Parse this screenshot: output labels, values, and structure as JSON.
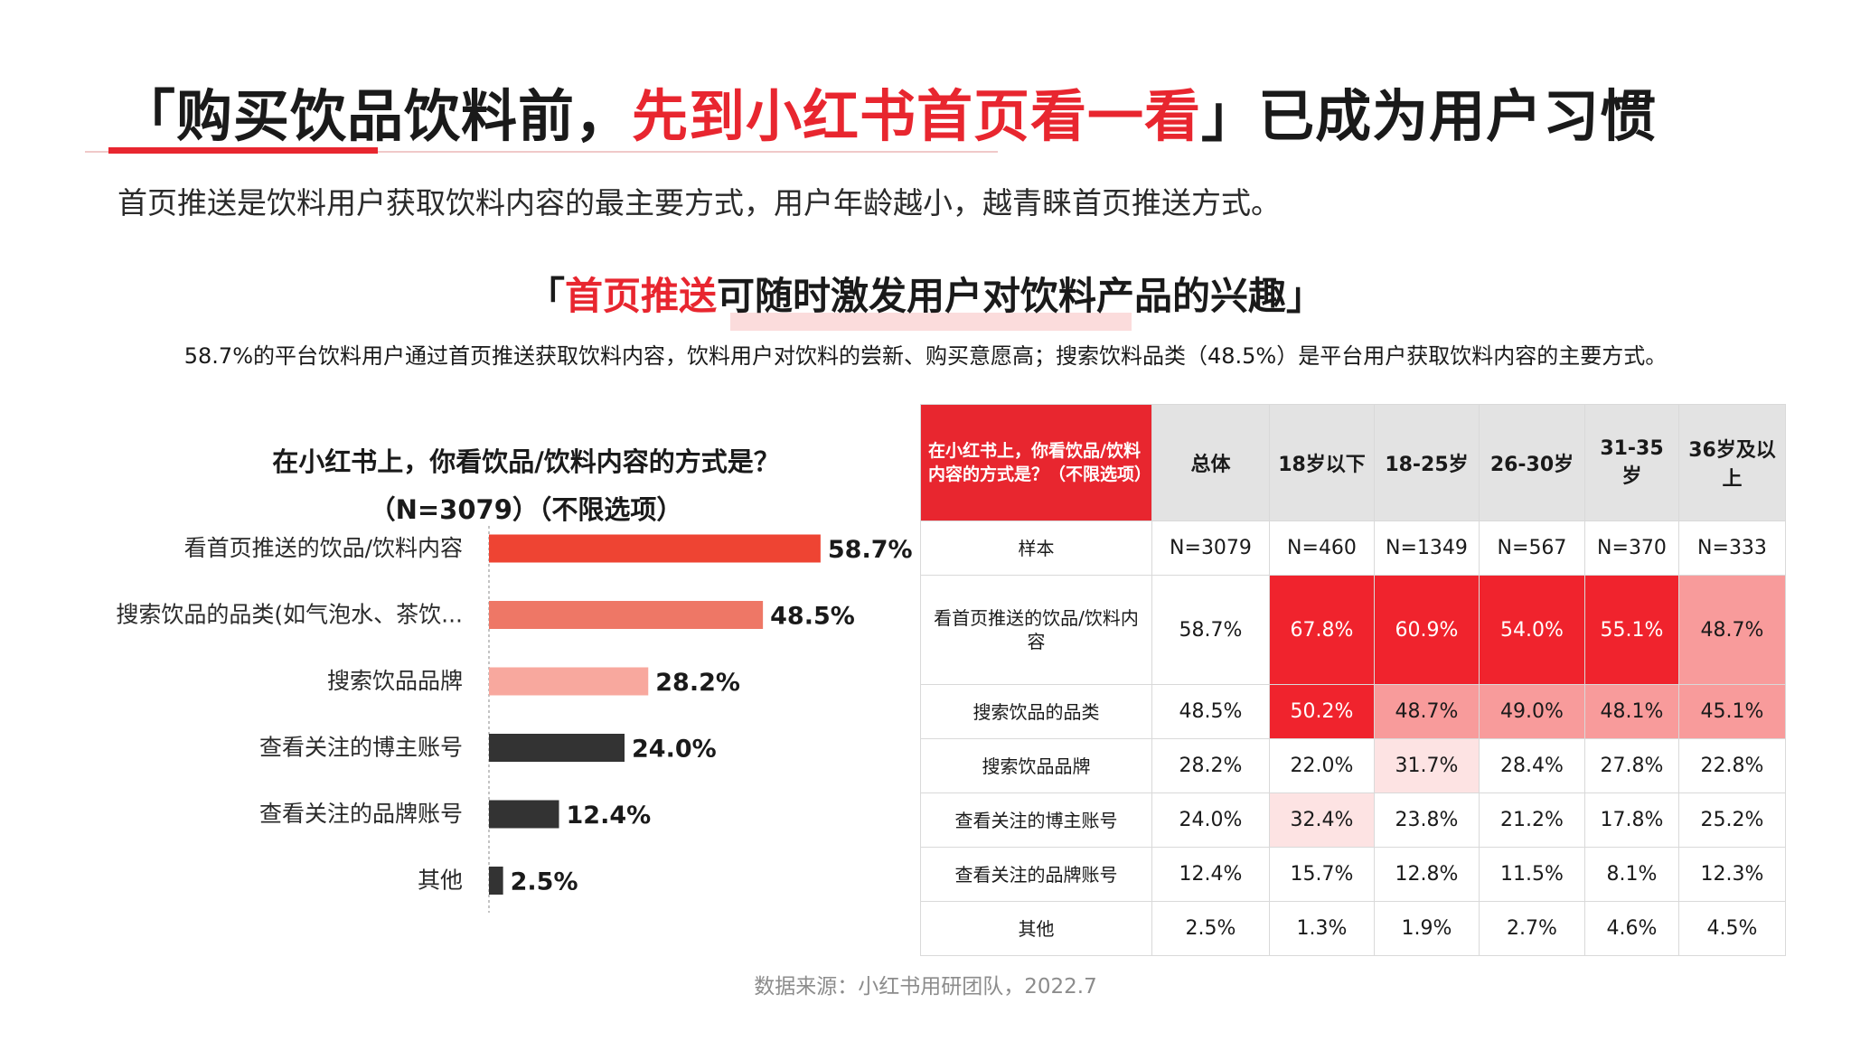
{
  "header": {
    "title_open": "「",
    "title_part1": "购买饮品饮料前，",
    "title_highlight": "先到小红书首页看一看",
    "title_close": "」",
    "title_part2": "已成为用户习惯",
    "subtitle": "首页推送是饮料用户获取饮料内容的最主要方式，用户年龄越小，越青睐首页推送方式。"
  },
  "section": {
    "heading_open": "「",
    "heading_highlight": "首页推送",
    "heading_rest": "可随时激发用户对饮料产品的兴趣",
    "heading_close": "」",
    "description": "58.7%的平台饮料用户通过首页推送获取饮料内容，饮料用户对饮料的尝新、购买意愿高；搜索饮料品类（48.5%）是平台用户获取饮料内容的主要方式。"
  },
  "chart_data": {
    "type": "bar",
    "orientation": "horizontal",
    "title_line1": "在小红书上，你看饮品/饮料内容的方式是？",
    "title_line2": "（N=3079）（不限选项）",
    "categories": [
      "看首页推送的饮品/饮料内容",
      "搜索饮品的品类(如气泡水、茶饮...",
      "搜索饮品品牌",
      "查看关注的博主账号",
      "查看关注的品牌账号",
      "其他"
    ],
    "values": [
      58.7,
      48.5,
      28.2,
      24.0,
      12.4,
      2.5
    ],
    "value_labels": [
      "58.7%",
      "48.5%",
      "28.2%",
      "24.0%",
      "12.4%",
      "2.5%"
    ],
    "bar_colors": [
      "#ee4433",
      "#ee7766",
      "#f8a89e",
      "#333333",
      "#333333",
      "#333333"
    ],
    "xlim": [
      0,
      60
    ],
    "grid": false
  },
  "table": {
    "header_question": "在小红书上，你看饮品/饮料内容的方式是？（不限选项）",
    "columns": [
      "总体",
      "18岁以下",
      "18-25岁",
      "26-30岁",
      "31-35岁",
      "36岁及以上"
    ],
    "rows": [
      {
        "label": "样本",
        "values": [
          "N=3079",
          "N=460",
          "N=1349",
          "N=567",
          "N=370",
          "N=333"
        ],
        "levels": [
          0,
          0,
          0,
          0,
          0,
          0
        ]
      },
      {
        "label": "看首页推送的饮品/饮料内容",
        "values": [
          "58.7%",
          "67.8%",
          "60.9%",
          "54.0%",
          "55.1%",
          "48.7%"
        ],
        "levels": [
          0,
          1,
          1,
          1,
          1,
          2
        ]
      },
      {
        "label": "搜索饮品的品类",
        "values": [
          "48.5%",
          "50.2%",
          "48.7%",
          "49.0%",
          "48.1%",
          "45.1%"
        ],
        "levels": [
          0,
          1,
          2,
          2,
          2,
          2
        ]
      },
      {
        "label": "搜索饮品品牌",
        "values": [
          "28.2%",
          "22.0%",
          "31.7%",
          "28.4%",
          "27.8%",
          "22.8%"
        ],
        "levels": [
          0,
          0,
          3,
          0,
          0,
          0
        ]
      },
      {
        "label": "查看关注的博主账号",
        "values": [
          "24.0%",
          "32.4%",
          "23.8%",
          "21.2%",
          "17.8%",
          "25.2%"
        ],
        "levels": [
          0,
          3,
          0,
          0,
          0,
          0
        ]
      },
      {
        "label": "查看关注的品牌账号",
        "values": [
          "12.4%",
          "15.7%",
          "12.8%",
          "11.5%",
          "8.1%",
          "12.3%"
        ],
        "levels": [
          0,
          0,
          0,
          0,
          0,
          0
        ]
      },
      {
        "label": "其他",
        "values": [
          "2.5%",
          "1.3%",
          "1.9%",
          "2.7%",
          "4.6%",
          "4.5%"
        ],
        "levels": [
          0,
          0,
          0,
          0,
          0,
          0
        ]
      }
    ],
    "heat_colors": {
      "1": "#f0232d",
      "2": "#f89b9b",
      "3": "#fde3e3"
    }
  },
  "footer": {
    "source": "数据来源：小红书用研团队，2022.7"
  }
}
